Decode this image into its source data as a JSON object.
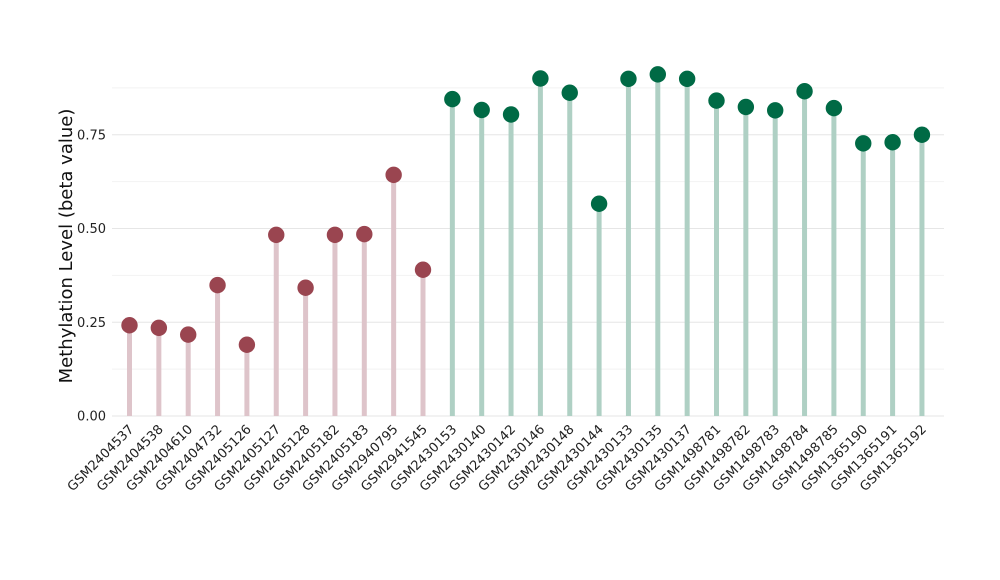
{
  "chart_data": {
    "type": "lollipop",
    "title": "",
    "xlabel": "",
    "ylabel": "Methylation Level (beta value)",
    "ylim": [
      0,
      0.9
    ],
    "yticks": [
      "0.00",
      "0.25",
      "0.50",
      "0.75"
    ],
    "ytick_values": [
      0,
      0.25,
      0.5,
      0.75
    ],
    "grid": true,
    "colors": {
      "group_a_point": "#9a4550",
      "group_a_stem": "#dec4ca",
      "group_b_point": "#006a45",
      "group_b_stem": "#afd0c4",
      "grid_major": "#e6e6e6",
      "grid_minor": "#f2f2f2"
    },
    "categories": [
      "GSM2404537",
      "GSM2404538",
      "GSM2404610",
      "GSM2404732",
      "GSM2405126",
      "GSM2405127",
      "GSM2405128",
      "GSM2405182",
      "GSM2405183",
      "GSM2940795",
      "GSM2941545",
      "GSM2430153",
      "GSM2430140",
      "GSM2430142",
      "GSM2430146",
      "GSM2430148",
      "GSM2430144",
      "GSM2430133",
      "GSM2430135",
      "GSM2430137",
      "GSM1498781",
      "GSM1498782",
      "GSM1498783",
      "GSM1498784",
      "GSM1498785",
      "GSM1365190",
      "GSM1365191",
      "GSM1365192"
    ],
    "values": [
      0.242,
      0.235,
      0.217,
      0.349,
      0.19,
      0.483,
      0.342,
      0.483,
      0.485,
      0.643,
      0.39,
      0.845,
      0.816,
      0.804,
      0.9,
      0.862,
      0.566,
      0.899,
      0.911,
      0.899,
      0.841,
      0.824,
      0.815,
      0.866,
      0.821,
      0.727,
      0.73,
      0.75
    ],
    "groups": [
      "a",
      "a",
      "a",
      "a",
      "a",
      "a",
      "a",
      "a",
      "a",
      "a",
      "a",
      "b",
      "b",
      "b",
      "b",
      "b",
      "b",
      "b",
      "b",
      "b",
      "b",
      "b",
      "b",
      "b",
      "b",
      "b",
      "b",
      "b"
    ]
  }
}
